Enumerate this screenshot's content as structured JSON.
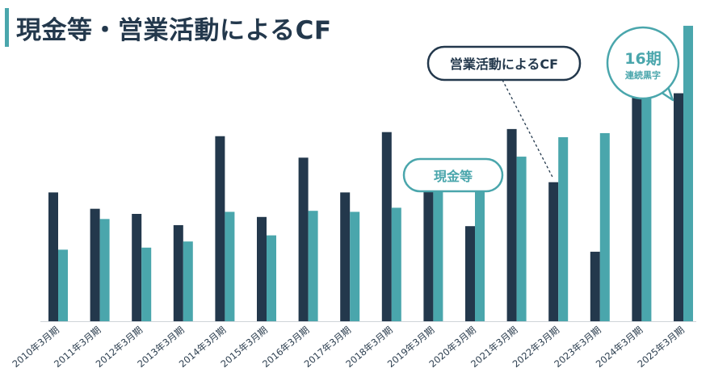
{
  "title": "現金等・営業活動によるCF",
  "colors": {
    "cf": "#23384c",
    "cash": "#4aa6ac",
    "title": "#23384c",
    "axis": "#cfd4d8"
  },
  "chart_data": {
    "type": "bar",
    "title": "現金等・営業活動によるCF",
    "categories": [
      "2010年3月期",
      "2011年3月期",
      "2012年3月期",
      "2013年3月期",
      "2014年3月期",
      "2015年3月期",
      "2016年3月期",
      "2017年3月期",
      "2018年3月期",
      "2019年3月期",
      "2020年3月期",
      "2021年3月期",
      "2022年3月期",
      "2023年3月期",
      "2024年3月期",
      "2025年3月期"
    ],
    "series": [
      {
        "name": "営業活動によるCF",
        "values": [
          126,
          110,
          105,
          94,
          181,
          102,
          160,
          126,
          185,
          157,
          93,
          188,
          136,
          68,
          219,
          223
        ]
      },
      {
        "name": "現金等",
        "values": [
          70,
          100,
          72,
          78,
          107,
          84,
          108,
          107,
          111,
          134,
          152,
          161,
          180,
          184,
          247,
          289
        ]
      }
    ],
    "xlabel": "",
    "ylabel": "",
    "ylim": [
      0,
      300
    ],
    "grid": false,
    "axis_labels": false,
    "callouts": {
      "cf_label": "営業活動によるCF",
      "cash_label": "現金等",
      "badge_main": "16期",
      "badge_sub": "連続黒字"
    }
  }
}
